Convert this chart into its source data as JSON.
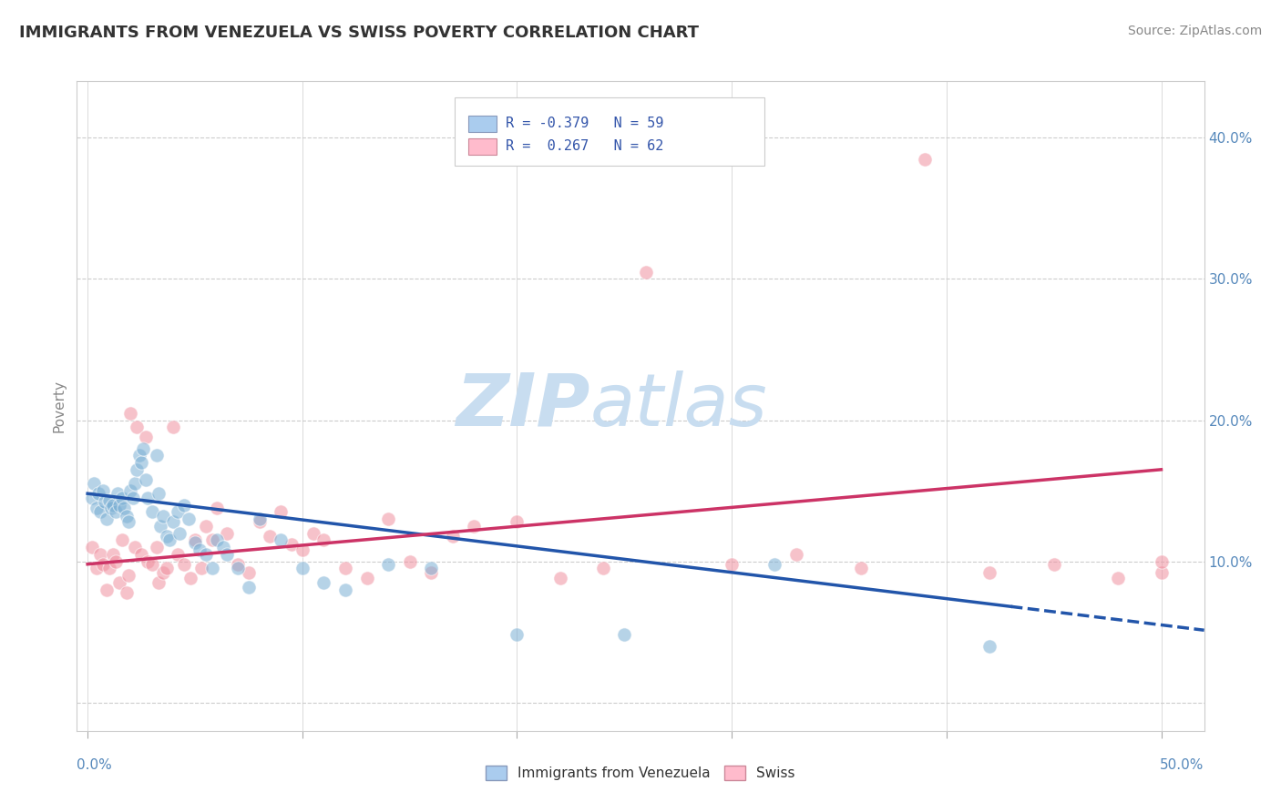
{
  "title": "IMMIGRANTS FROM VENEZUELA VS SWISS POVERTY CORRELATION CHART",
  "source": "Source: ZipAtlas.com",
  "ylabel": "Poverty",
  "yticks": [
    0.0,
    0.1,
    0.2,
    0.3,
    0.4
  ],
  "ytick_labels_right": [
    "",
    "10.0%",
    "20.0%",
    "30.0%",
    "40.0%"
  ],
  "xticks": [
    0.0,
    0.1,
    0.2,
    0.3,
    0.4,
    0.5
  ],
  "xlim": [
    -0.005,
    0.52
  ],
  "ylim": [
    -0.02,
    0.44
  ],
  "legend_blue_label": "Immigrants from Venezuela",
  "legend_pink_label": "Swiss",
  "R_blue": -0.379,
  "N_blue": 59,
  "R_pink": 0.267,
  "N_pink": 62,
  "blue_color": "#7bafd4",
  "pink_color": "#f0909f",
  "blue_line_color": "#2255aa",
  "pink_line_color": "#cc3366",
  "blue_fill": "#aaccee",
  "pink_fill": "#ffbbcc",
  "watermark_zip": "ZIP",
  "watermark_atlas": "atlas",
  "blue_line_start_y": 0.148,
  "blue_line_end_y": 0.068,
  "blue_line_start_x": 0.0,
  "blue_line_end_x": 0.43,
  "pink_line_start_y": 0.098,
  "pink_line_end_y": 0.165,
  "pink_line_start_x": 0.0,
  "pink_line_end_x": 0.5,
  "blue_scatter_x": [
    0.002,
    0.003,
    0.004,
    0.005,
    0.006,
    0.007,
    0.008,
    0.009,
    0.01,
    0.011,
    0.012,
    0.013,
    0.014,
    0.015,
    0.016,
    0.017,
    0.018,
    0.019,
    0.02,
    0.021,
    0.022,
    0.023,
    0.024,
    0.025,
    0.026,
    0.027,
    0.028,
    0.03,
    0.032,
    0.033,
    0.034,
    0.035,
    0.037,
    0.038,
    0.04,
    0.042,
    0.043,
    0.045,
    0.047,
    0.05,
    0.052,
    0.055,
    0.058,
    0.06,
    0.063,
    0.065,
    0.07,
    0.075,
    0.08,
    0.09,
    0.1,
    0.11,
    0.12,
    0.14,
    0.16,
    0.2,
    0.25,
    0.32,
    0.42
  ],
  "blue_scatter_y": [
    0.145,
    0.155,
    0.138,
    0.148,
    0.135,
    0.15,
    0.142,
    0.13,
    0.143,
    0.138,
    0.14,
    0.135,
    0.148,
    0.14,
    0.145,
    0.138,
    0.132,
    0.128,
    0.15,
    0.145,
    0.155,
    0.165,
    0.175,
    0.17,
    0.18,
    0.158,
    0.145,
    0.135,
    0.175,
    0.148,
    0.125,
    0.132,
    0.118,
    0.115,
    0.128,
    0.135,
    0.12,
    0.14,
    0.13,
    0.113,
    0.108,
    0.105,
    0.095,
    0.115,
    0.11,
    0.105,
    0.095,
    0.082,
    0.13,
    0.115,
    0.095,
    0.085,
    0.08,
    0.098,
    0.095,
    0.048,
    0.048,
    0.098,
    0.04
  ],
  "pink_scatter_x": [
    0.002,
    0.004,
    0.006,
    0.007,
    0.009,
    0.01,
    0.012,
    0.013,
    0.015,
    0.016,
    0.018,
    0.019,
    0.02,
    0.022,
    0.023,
    0.025,
    0.027,
    0.028,
    0.03,
    0.032,
    0.033,
    0.035,
    0.037,
    0.04,
    0.042,
    0.045,
    0.048,
    0.05,
    0.053,
    0.055,
    0.058,
    0.06,
    0.065,
    0.07,
    0.075,
    0.08,
    0.085,
    0.09,
    0.095,
    0.1,
    0.105,
    0.11,
    0.12,
    0.13,
    0.14,
    0.15,
    0.16,
    0.17,
    0.18,
    0.2,
    0.22,
    0.24,
    0.26,
    0.3,
    0.33,
    0.36,
    0.39,
    0.42,
    0.45,
    0.48,
    0.5,
    0.5
  ],
  "pink_scatter_y": [
    0.11,
    0.095,
    0.105,
    0.098,
    0.08,
    0.095,
    0.105,
    0.1,
    0.085,
    0.115,
    0.078,
    0.09,
    0.205,
    0.11,
    0.195,
    0.105,
    0.188,
    0.1,
    0.098,
    0.11,
    0.085,
    0.092,
    0.095,
    0.195,
    0.105,
    0.098,
    0.088,
    0.115,
    0.095,
    0.125,
    0.115,
    0.138,
    0.12,
    0.098,
    0.092,
    0.128,
    0.118,
    0.135,
    0.112,
    0.108,
    0.12,
    0.115,
    0.095,
    0.088,
    0.13,
    0.1,
    0.092,
    0.118,
    0.125,
    0.128,
    0.088,
    0.095,
    0.305,
    0.098,
    0.105,
    0.095,
    0.385,
    0.092,
    0.098,
    0.088,
    0.092,
    0.1
  ]
}
